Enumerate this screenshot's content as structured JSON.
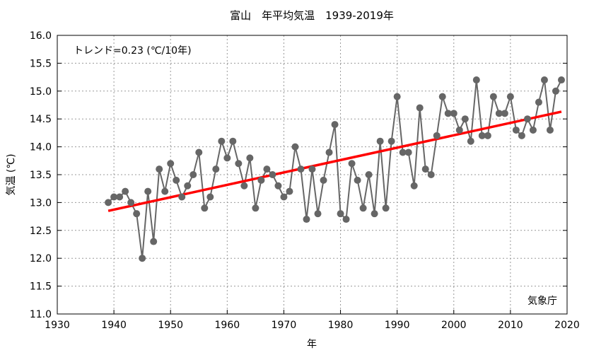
{
  "chart_data": {
    "type": "line",
    "title": "富山　年平均気温　1939-2019年",
    "xlabel": "年",
    "ylabel": "気温 (℃)",
    "xlim": [
      1930,
      2020
    ],
    "ylim": [
      11.0,
      16.0
    ],
    "xticks": [
      "1930",
      "1940",
      "1950",
      "1960",
      "1970",
      "1980",
      "1990",
      "2000",
      "2010",
      "2020"
    ],
    "yticks": [
      "11.0",
      "11.5",
      "12.0",
      "12.5",
      "13.0",
      "13.5",
      "14.0",
      "14.5",
      "15.0",
      "15.5",
      "16.0"
    ],
    "grid": true,
    "annotation": "トレンド=0.23 (℃/10年)",
    "source": "気象庁",
    "series": [
      {
        "name": "年平均気温",
        "color": "#666666",
        "x": [
          1939,
          1940,
          1941,
          1942,
          1943,
          1944,
          1945,
          1946,
          1947,
          1948,
          1949,
          1950,
          1951,
          1952,
          1953,
          1954,
          1955,
          1956,
          1957,
          1958,
          1959,
          1960,
          1961,
          1962,
          1963,
          1964,
          1965,
          1966,
          1967,
          1968,
          1969,
          1970,
          1971,
          1972,
          1973,
          1974,
          1975,
          1976,
          1977,
          1978,
          1979,
          1980,
          1981,
          1982,
          1983,
          1984,
          1985,
          1986,
          1987,
          1988,
          1989,
          1990,
          1991,
          1992,
          1993,
          1994,
          1995,
          1996,
          1997,
          1998,
          1999,
          2000,
          2001,
          2002,
          2003,
          2004,
          2005,
          2006,
          2007,
          2008,
          2009,
          2010,
          2011,
          2012,
          2013,
          2014,
          2015,
          2016,
          2017,
          2018,
          2019
        ],
        "values": [
          13.0,
          13.1,
          13.1,
          13.2,
          13.0,
          12.8,
          12.0,
          13.2,
          12.3,
          13.6,
          13.2,
          13.7,
          13.4,
          13.1,
          13.3,
          13.5,
          13.9,
          12.9,
          13.1,
          13.6,
          14.1,
          13.8,
          14.1,
          13.7,
          13.3,
          13.8,
          12.9,
          13.4,
          13.6,
          13.5,
          13.3,
          13.1,
          13.2,
          14.0,
          13.6,
          12.7,
          13.6,
          12.8,
          13.4,
          13.9,
          14.4,
          12.8,
          12.7,
          13.7,
          13.4,
          12.9,
          13.5,
          12.8,
          14.1,
          12.9,
          14.1,
          14.9,
          13.9,
          13.9,
          13.3,
          14.7,
          13.6,
          13.5,
          14.2,
          14.9,
          14.6,
          14.6,
          14.3,
          14.5,
          14.1,
          15.2,
          14.2,
          14.2,
          14.9,
          14.6,
          14.6,
          14.9,
          14.3,
          14.2,
          14.5,
          14.3,
          14.8,
          15.2,
          14.3,
          15.0,
          15.2
        ]
      }
    ],
    "trend": {
      "name": "トレンド",
      "color": "#ff0000",
      "x": [
        1939,
        2019
      ],
      "values": [
        12.85,
        14.63
      ]
    }
  }
}
